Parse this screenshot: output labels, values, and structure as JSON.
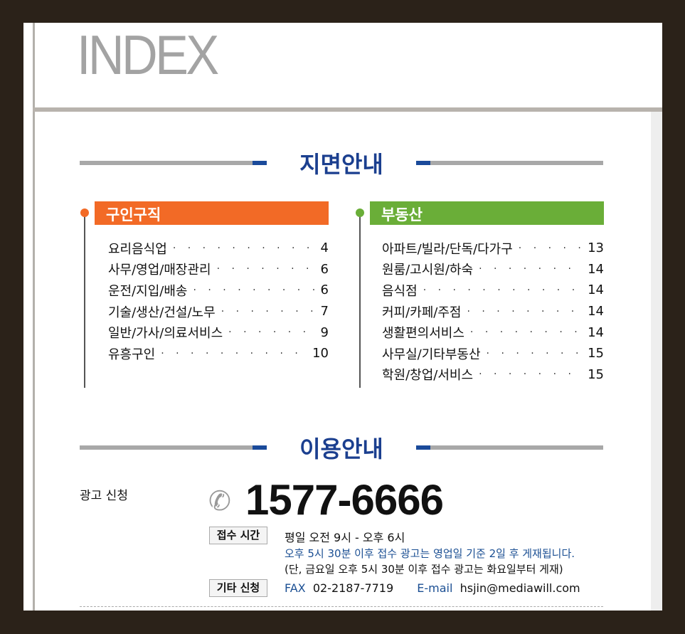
{
  "title": "INDEX",
  "section1": {
    "title": "지면안내"
  },
  "jobs": {
    "header": "구인구직",
    "color": "#f26a26",
    "items": [
      {
        "label": "요리음식업",
        "page": "4"
      },
      {
        "label": "사무/영업/매장관리",
        "page": "6"
      },
      {
        "label": "운전/지입/배송",
        "page": "6"
      },
      {
        "label": "기술/생산/건설/노무",
        "page": "7"
      },
      {
        "label": "일반/가사/의료서비스",
        "page": "9"
      },
      {
        "label": "유흥구인",
        "page": "10"
      }
    ]
  },
  "realestate": {
    "header": "부동산",
    "color": "#6aae38",
    "items": [
      {
        "label": "아파트/빌라/단독/다가구",
        "page": "13"
      },
      {
        "label": "원룸/고시원/하숙",
        "page": "14"
      },
      {
        "label": "음식점",
        "page": "14"
      },
      {
        "label": "커피/카페/주점",
        "page": "14"
      },
      {
        "label": "생활편의서비스",
        "page": "14"
      },
      {
        "label": "사무실/기타부동산",
        "page": "15"
      },
      {
        "label": "학원/창업/서비스",
        "page": "15"
      }
    ]
  },
  "section2": {
    "title": "이용안내"
  },
  "usage": {
    "ad_label": "광고 신청",
    "phone": "1577-6666",
    "hours_badge": "접수 시간",
    "hours": "평일 오전 9시 - 오후 6시",
    "note1": "오후 5시 30분 이후 접수 광고는 영업일 기준 2일 후 게재됩니다.",
    "note2": "(단, 금요일 오후 5시 30분 이후 접수 광고는 화요일부터 게재)",
    "other_badge": "기타 신청",
    "fax_label": "FAX",
    "fax": "02-2187-7719",
    "email_label": "E-mail",
    "email": "hsjin@mediawill.com"
  }
}
